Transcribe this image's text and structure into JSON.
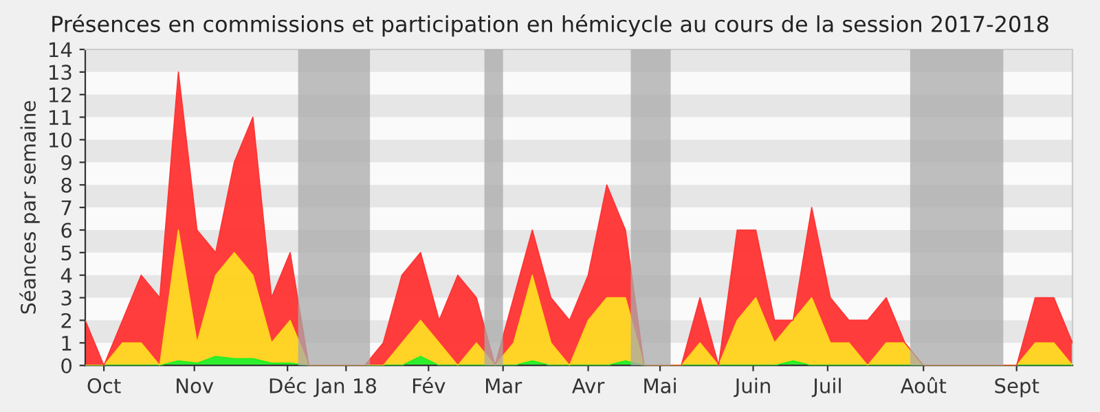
{
  "chart_data": {
    "type": "area",
    "stacked": true,
    "title": "Présences en commissions et participation en hémicycle au cours de la session 2017-2018",
    "ylabel": "Séances par semaine",
    "x": [
      "2017-09-25",
      "2017-10-02",
      "2017-10-09",
      "2017-10-16",
      "2017-10-23",
      "2017-10-30",
      "2017-11-06",
      "2017-11-13",
      "2017-11-20",
      "2017-11-27",
      "2017-12-04",
      "2017-12-11",
      "2017-12-18",
      "2017-12-25",
      "2018-01-01",
      "2018-01-08",
      "2018-01-15",
      "2018-01-22",
      "2018-01-29",
      "2018-02-05",
      "2018-02-12",
      "2018-02-19",
      "2018-02-26",
      "2018-03-05",
      "2018-03-12",
      "2018-03-19",
      "2018-03-26",
      "2018-04-02",
      "2018-04-09",
      "2018-04-16",
      "2018-04-23",
      "2018-04-30",
      "2018-05-07",
      "2018-05-14",
      "2018-05-21",
      "2018-05-28",
      "2018-06-04",
      "2018-06-11",
      "2018-06-18",
      "2018-06-25",
      "2018-07-02",
      "2018-07-09",
      "2018-07-16",
      "2018-07-23",
      "2018-07-30",
      "2018-08-06",
      "2018-08-13",
      "2018-08-20",
      "2018-08-27",
      "2018-09-03",
      "2018-09-10",
      "2018-09-17",
      "2018-09-24",
      "2018-10-01"
    ],
    "xlim": [
      "2017-09-25",
      "2018-10-01"
    ],
    "xticks": [
      {
        "value": "2017-10-02",
        "label": "Oct"
      },
      {
        "value": "2017-11-05",
        "label": "Nov"
      },
      {
        "value": "2017-12-10",
        "label": "Déc"
      },
      {
        "value": "2018-01-01",
        "label": "Jan 18"
      },
      {
        "value": "2018-02-01",
        "label": "Fév"
      },
      {
        "value": "2018-03-01",
        "label": "Mar"
      },
      {
        "value": "2018-04-02",
        "label": "Avr"
      },
      {
        "value": "2018-04-29",
        "label": "Mai"
      },
      {
        "value": "2018-06-03",
        "label": "Juin"
      },
      {
        "value": "2018-07-01",
        "label": "Juil"
      },
      {
        "value": "2018-08-06",
        "label": "Août"
      },
      {
        "value": "2018-09-10",
        "label": "Sept"
      }
    ],
    "bands": [
      {
        "axis": "x",
        "from": "2017-12-14",
        "to": "2018-01-10",
        "color": "#aaaaaa"
      },
      {
        "axis": "x",
        "from": "2018-02-22",
        "to": "2018-03-01",
        "color": "#aaaaaa"
      },
      {
        "axis": "x",
        "from": "2018-04-18",
        "to": "2018-05-03",
        "color": "#aaaaaa"
      },
      {
        "axis": "x",
        "from": "2018-08-01",
        "to": "2018-09-05",
        "color": "#aaaaaa"
      }
    ],
    "series": [
      {
        "color": "#22ee22",
        "values": [
          0,
          0,
          0,
          0,
          0,
          0.2,
          0.1,
          0.4,
          0.3,
          0.3,
          0.1,
          0.1,
          0,
          0,
          0,
          0,
          0,
          0,
          0.4,
          0,
          0,
          0,
          0,
          0,
          0.2,
          0,
          0,
          0,
          0,
          0.2,
          0,
          0,
          0,
          0,
          0,
          0,
          0,
          0,
          0.2,
          0,
          0,
          0,
          0,
          0,
          0,
          0,
          0,
          0,
          0,
          0,
          0,
          0,
          0,
          0
        ]
      },
      {
        "color": "#ffd21a",
        "values": [
          0,
          0,
          1,
          1,
          0,
          5.8,
          0.9,
          3.6,
          4.7,
          3.7,
          0.9,
          1.9,
          0,
          0,
          0,
          0,
          0,
          1,
          1.6,
          1,
          0,
          1,
          0,
          1,
          3.8,
          1,
          0,
          2,
          3,
          2.8,
          0,
          0,
          0,
          1,
          0,
          2,
          3,
          1,
          1.8,
          3,
          1,
          1,
          0,
          1,
          1,
          0,
          0,
          0,
          0,
          0,
          0,
          1,
          1,
          0
        ]
      },
      {
        "color": "#ff3333",
        "values": [
          2,
          0,
          1,
          3,
          3,
          7,
          5,
          1,
          4,
          7,
          2,
          3,
          0,
          0,
          0,
          0,
          1,
          3,
          3,
          1,
          4,
          2,
          0,
          2,
          2,
          2,
          2,
          2,
          5,
          3,
          0,
          0,
          0,
          2,
          0,
          4,
          3,
          1,
          0,
          4,
          2,
          1,
          2,
          2,
          0,
          0,
          0,
          0,
          0,
          0,
          0,
          2,
          2,
          1
        ]
      }
    ],
    "ylim": [
      0,
      14
    ],
    "yticks": [
      0,
      1,
      2,
      3,
      4,
      5,
      6,
      7,
      8,
      9,
      10,
      11,
      12,
      13,
      14
    ]
  }
}
